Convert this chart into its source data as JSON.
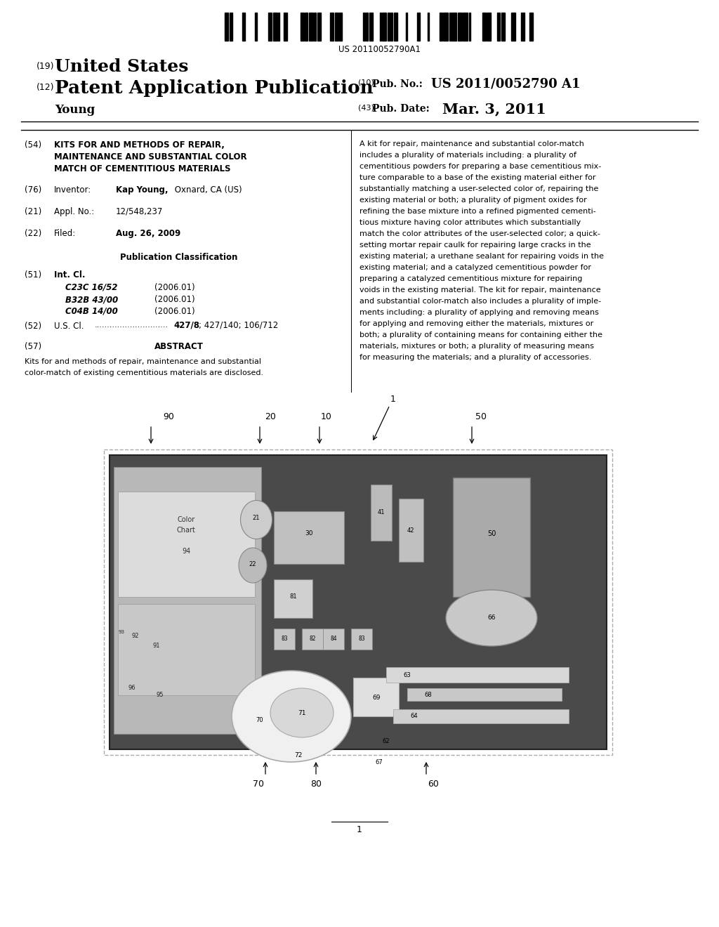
{
  "background_color": "#ffffff",
  "barcode_text": "US 20110052790A1",
  "header": {
    "country_num": "(19)",
    "country": "United States",
    "pub_type_num": "(12)",
    "pub_type": "Patent Application Publication",
    "pub_no_num": "(10)",
    "pub_no_label": "Pub. No.:",
    "pub_no": "US 2011/0052790 A1",
    "inventor_name": "Young",
    "pub_date_num": "(43)",
    "pub_date_label": "Pub. Date:",
    "pub_date": "Mar. 3, 2011"
  },
  "left_col": {
    "title_num": "(54)",
    "title_lines": [
      "KITS FOR AND METHODS OF REPAIR,",
      "MAINTENANCE AND SUBSTANTIAL COLOR",
      "MATCH OF CEMENTITIOUS MATERIALS"
    ],
    "inventor_num": "(76)",
    "inventor_label": "Inventor:",
    "inventor_bold": "Kap Young,",
    "inventor_rest": " Oxnard, CA (US)",
    "appl_num": "(21)",
    "appl_label": "Appl. No.:",
    "appl_value": "12/548,237",
    "filed_num": "(22)",
    "filed_label": "Filed:",
    "filed_value": "Aug. 26, 2009",
    "pub_class_header": "Publication Classification",
    "int_cl_num": "(51)",
    "int_cl_label": "Int. Cl.",
    "int_cl_entries": [
      [
        "C23C 16/52",
        "(2006.01)"
      ],
      [
        "B32B 43/00",
        "(2006.01)"
      ],
      [
        "C04B 14/00",
        "(2006.01)"
      ]
    ],
    "us_cl_num": "(52)",
    "us_cl_label": "U.S. Cl.",
    "us_cl_dots": ".............................",
    "us_cl_value": "427/8; 427/140; 106/712",
    "abstract_num": "(57)",
    "abstract_label": "ABSTRACT",
    "abstract_lines": [
      "Kits for and methods of repair, maintenance and substantial",
      "color-match of existing cementitious materials are disclosed."
    ]
  },
  "right_col_lines": [
    "A kit for repair, maintenance and substantial color-match",
    "includes a plurality of materials including: a plurality of",
    "cementitious powders for preparing a base cementitious mix-",
    "ture comparable to a base of the existing material either for",
    "substantially matching a user-selected color of, repairing the",
    "existing material or both; a plurality of pigment oxides for",
    "refining the base mixture into a refined pigmented cementi-",
    "tious mixture having color attributes which substantially",
    "match the color attributes of the user-selected color; a quick-",
    "setting mortar repair caulk for repairing large cracks in the",
    "existing material; a urethane sealant for repairing voids in the",
    "existing material; and a catalyzed cementitious powder for",
    "preparing a catalyzed cementitious mixture for repairing",
    "voids in the existing material. The kit for repair, maintenance",
    "and substantial color-match also includes a plurality of imple-",
    "ments including: a plurality of applying and removing means",
    "for applying and removing either the materials, mixtures or",
    "both; a plurality of containing means for containing either the",
    "materials, mixtures or both; a plurality of measuring means",
    "for measuring the materials; and a plurality of accessories."
  ],
  "page_number": "1",
  "fig_photo_color": "#777777",
  "fig_photo_border": "#333333"
}
